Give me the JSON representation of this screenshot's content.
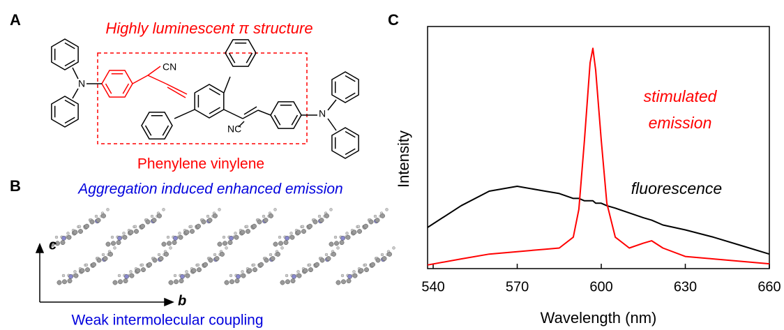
{
  "panels": {
    "a": {
      "label": "A",
      "title": "Highly luminescent π structure",
      "subtitle": "Phenylene vinylene",
      "groups": [
        "CN",
        "NC",
        "N",
        "N"
      ]
    },
    "b": {
      "label": "B",
      "title": "Aggregation induced enhanced emission",
      "subtitle": "Weak intermolecular coupling",
      "axes": [
        "c",
        "b"
      ]
    },
    "c": {
      "label": "C"
    }
  },
  "chart_data": {
    "type": "line",
    "x_label": "Wavelength (nm)",
    "y_label": "Intensity",
    "x": [
      538,
      550,
      560,
      570,
      580,
      585,
      590,
      592,
      594,
      596,
      597,
      598,
      600,
      602,
      605,
      610,
      615,
      618,
      622,
      630,
      640,
      650,
      660
    ],
    "series": [
      {
        "color": "#000000",
        "values": [
          0.17,
          0.26,
          0.32,
          0.34,
          0.32,
          0.31,
          0.29,
          0.29,
          0.28,
          0.28,
          0.28,
          0.27,
          0.27,
          0.26,
          0.25,
          0.23,
          0.21,
          0.2,
          0.18,
          0.16,
          0.13,
          0.095,
          0.06
        ]
      },
      {
        "color": "#ff0000",
        "values": [
          0.015,
          0.04,
          0.06,
          0.07,
          0.08,
          0.085,
          0.13,
          0.245,
          0.53,
          0.85,
          0.91,
          0.82,
          0.53,
          0.27,
          0.13,
          0.085,
          0.105,
          0.115,
          0.085,
          0.05,
          0.04,
          0.03,
          0.02
        ]
      }
    ],
    "annotations": [
      {
        "lines": [
          "stimulated",
          "emission"
        ],
        "color": "#ff0000"
      },
      {
        "lines": [
          "fluorescence"
        ],
        "color": "#000000"
      }
    ],
    "xlim": [
      538,
      660
    ],
    "xticks": [
      540,
      570,
      600,
      630,
      660
    ],
    "ylim": [
      0,
      1
    ]
  }
}
